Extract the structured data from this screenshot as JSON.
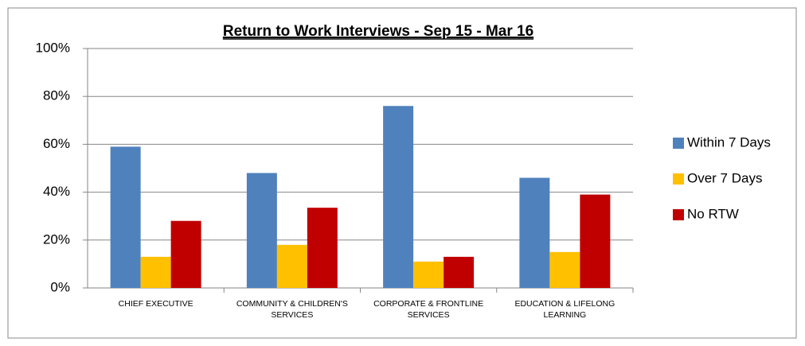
{
  "chart_data": {
    "type": "bar",
    "title": "Return to Work Interviews  - Sep 15 - Mar 16",
    "categories": [
      "CHIEF EXECUTIVE",
      "COMMUNITY & CHILDREN'S SERVICES",
      "CORPORATE & FRONTLINE SERVICES",
      "EDUCATION & LIFELONG LEARNING"
    ],
    "series": [
      {
        "name": "Within 7 Days",
        "color": "#4f81bd",
        "values": [
          59,
          48,
          76,
          46
        ]
      },
      {
        "name": "Over 7 Days",
        "color": "#ffc000",
        "values": [
          13,
          18,
          11,
          15
        ]
      },
      {
        "name": "No RTW",
        "color": "#c00000",
        "values": [
          28,
          33.5,
          13,
          39
        ]
      }
    ],
    "ylim": [
      0,
      100
    ],
    "yticks": [
      {
        "value": 0,
        "label": "0%"
      },
      {
        "value": 20,
        "label": "20%"
      },
      {
        "value": 40,
        "label": "40%"
      },
      {
        "value": 60,
        "label": "60%"
      },
      {
        "value": 80,
        "label": "80%"
      },
      {
        "value": 100,
        "label": "100%"
      }
    ],
    "grid": true,
    "legend": "right"
  }
}
